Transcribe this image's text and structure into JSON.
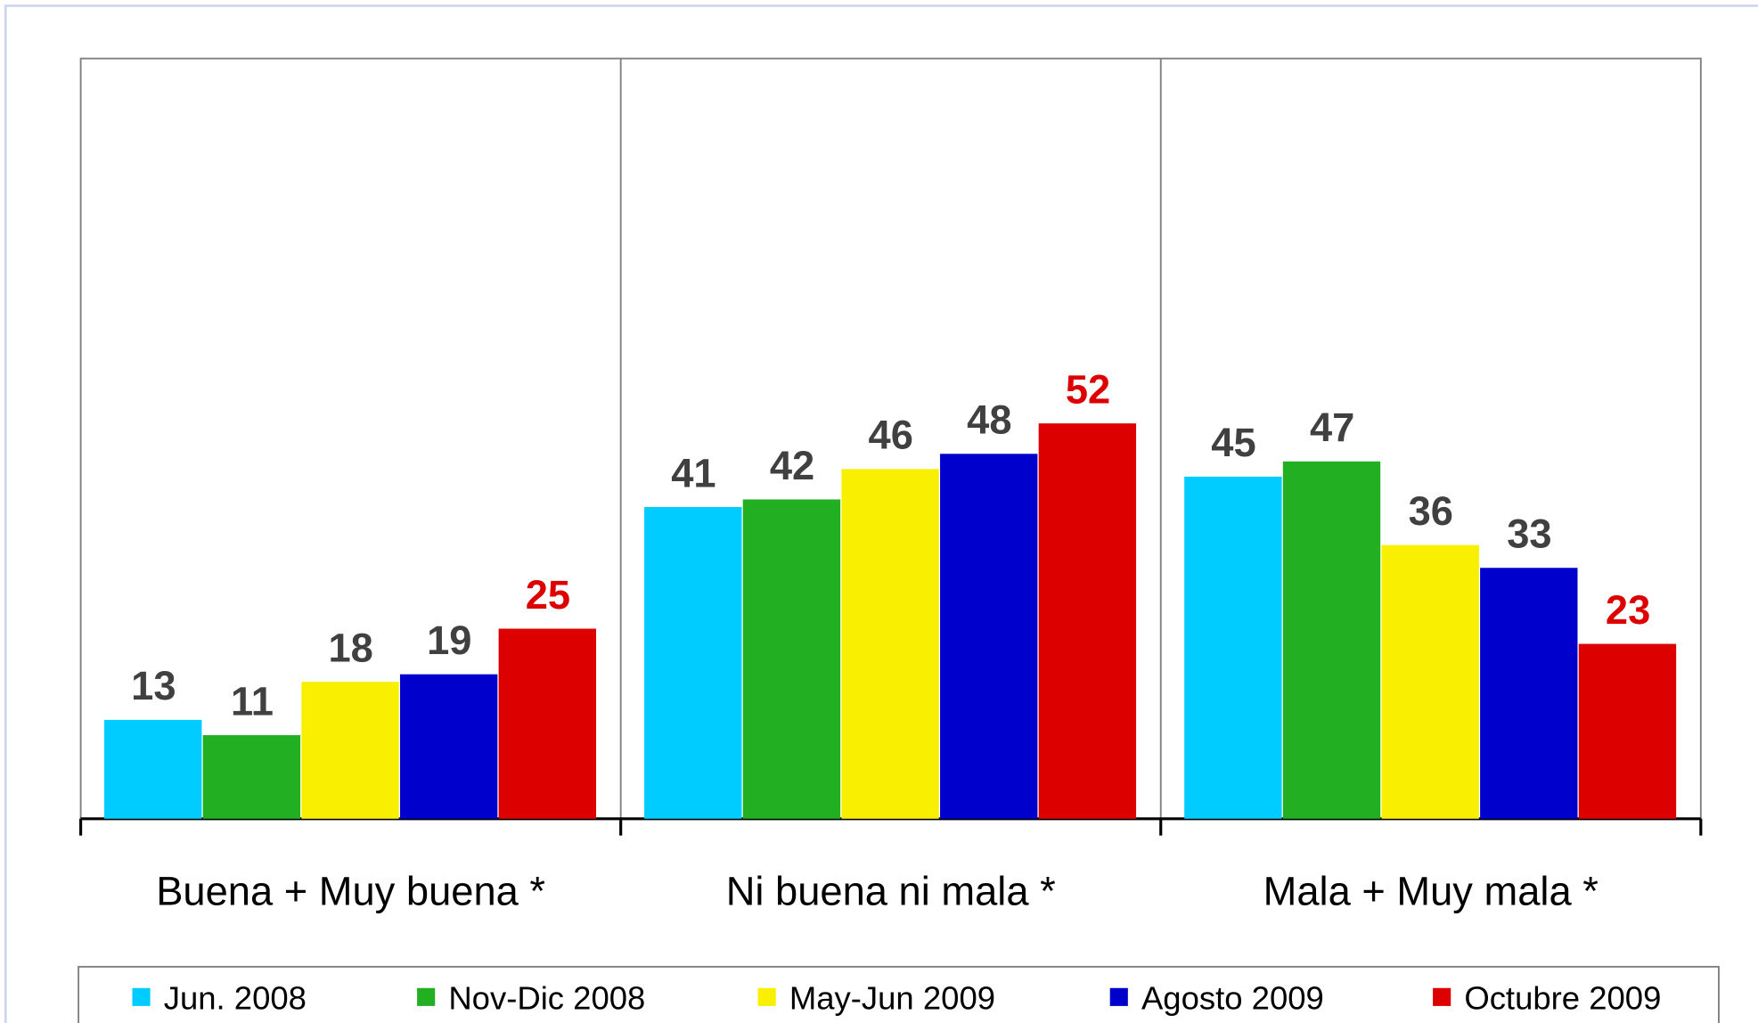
{
  "chart_data": {
    "type": "bar",
    "categories": [
      "Buena + Muy buena *",
      "Ni buena ni mala *",
      "Mala + Muy mala *"
    ],
    "series": [
      {
        "name": "Jun. 2008",
        "color": "#00ccff",
        "label_color": "#404040",
        "values": [
          13,
          41,
          45
        ]
      },
      {
        "name": "Nov-Dic 2008",
        "color": "#22b022",
        "label_color": "#404040",
        "values": [
          11,
          42,
          47
        ]
      },
      {
        "name": "May-Jun 2009",
        "color": "#f8f000",
        "label_color": "#404040",
        "values": [
          18,
          46,
          36
        ]
      },
      {
        "name": "Agosto 2009",
        "color": "#0000cc",
        "label_color": "#404040",
        "values": [
          19,
          48,
          33
        ]
      },
      {
        "name": "Octubre 2009",
        "color": "#dd0000",
        "label_color": "#dd0000",
        "values": [
          25,
          52,
          23
        ]
      }
    ],
    "ylim": [
      0,
      100
    ],
    "legend": "bottom"
  }
}
